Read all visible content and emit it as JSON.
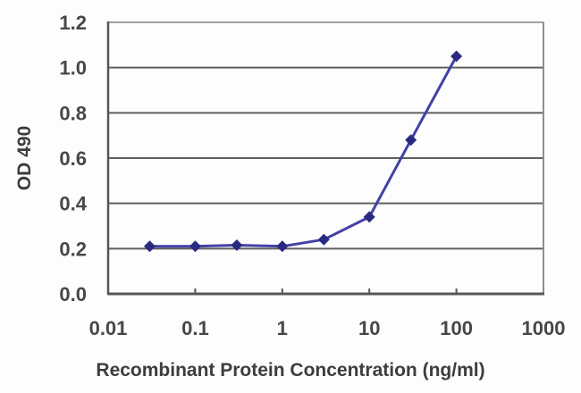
{
  "chart_data": {
    "type": "line",
    "title": "",
    "xlabel": "Recombinant Protein Concentration (ng/ml)",
    "ylabel": "OD 490",
    "x_scale": "log",
    "y_scale": "linear",
    "xlim": [
      0.01,
      1000
    ],
    "ylim": [
      0.0,
      1.2
    ],
    "x_ticks": [
      0.01,
      0.1,
      1,
      10,
      100,
      1000
    ],
    "x_tick_labels": [
      "0.01",
      "0.1",
      "1",
      "10",
      "100",
      "1000"
    ],
    "y_ticks": [
      0.0,
      0.2,
      0.4,
      0.6,
      0.8,
      1.0,
      1.2
    ],
    "y_tick_labels": [
      "0.0",
      "0.2",
      "0.4",
      "0.6",
      "0.8",
      "1.0",
      "1.2"
    ],
    "grid": "horizontal",
    "legend": "none",
    "series": [
      {
        "name": "OD 490 vs concentration",
        "x": [
          0.03,
          0.1,
          0.3,
          1,
          3,
          10,
          30,
          100
        ],
        "y": [
          0.21,
          0.21,
          0.215,
          0.21,
          0.24,
          0.34,
          0.68,
          1.05
        ],
        "marker": "diamond"
      }
    ],
    "colors": {
      "line": "#4341a6",
      "marker": "#2b2a81",
      "gridline": "#5f5f5f",
      "axis": "#565656",
      "frame_top": "#a3a3a3",
      "frame_right": "#8f8f8f",
      "tick_text": "#474747",
      "title_text": "#3d3d3d",
      "background": "#fdfdfd"
    }
  }
}
